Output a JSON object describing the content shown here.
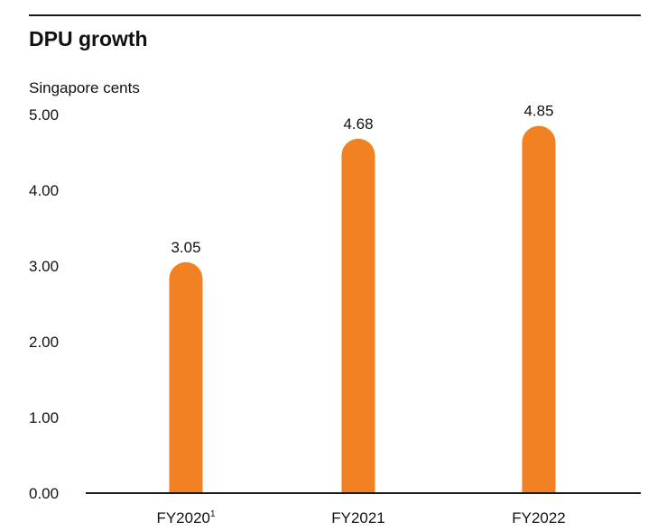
{
  "header": {
    "title": "DPU growth"
  },
  "chart_data": {
    "type": "bar",
    "title": "DPU growth",
    "ylabel": "Singapore cents",
    "xlabel": "",
    "categories": [
      "FY2020",
      "FY2021",
      "FY2022"
    ],
    "category_superscripts": [
      "1",
      "",
      ""
    ],
    "values": [
      3.05,
      4.68,
      4.85
    ],
    "data_labels": [
      "3.05",
      "4.68",
      "4.85"
    ],
    "ylim": [
      0,
      5
    ],
    "yticks": [
      0,
      1,
      2,
      3,
      4,
      5
    ],
    "ytick_labels": [
      "0.00",
      "1.00",
      "2.00",
      "3.00",
      "4.00",
      "5.00"
    ],
    "grid": false,
    "colors": {
      "bar": "#f28123",
      "axis": "#1a1a1a",
      "text": "#111111"
    }
  }
}
